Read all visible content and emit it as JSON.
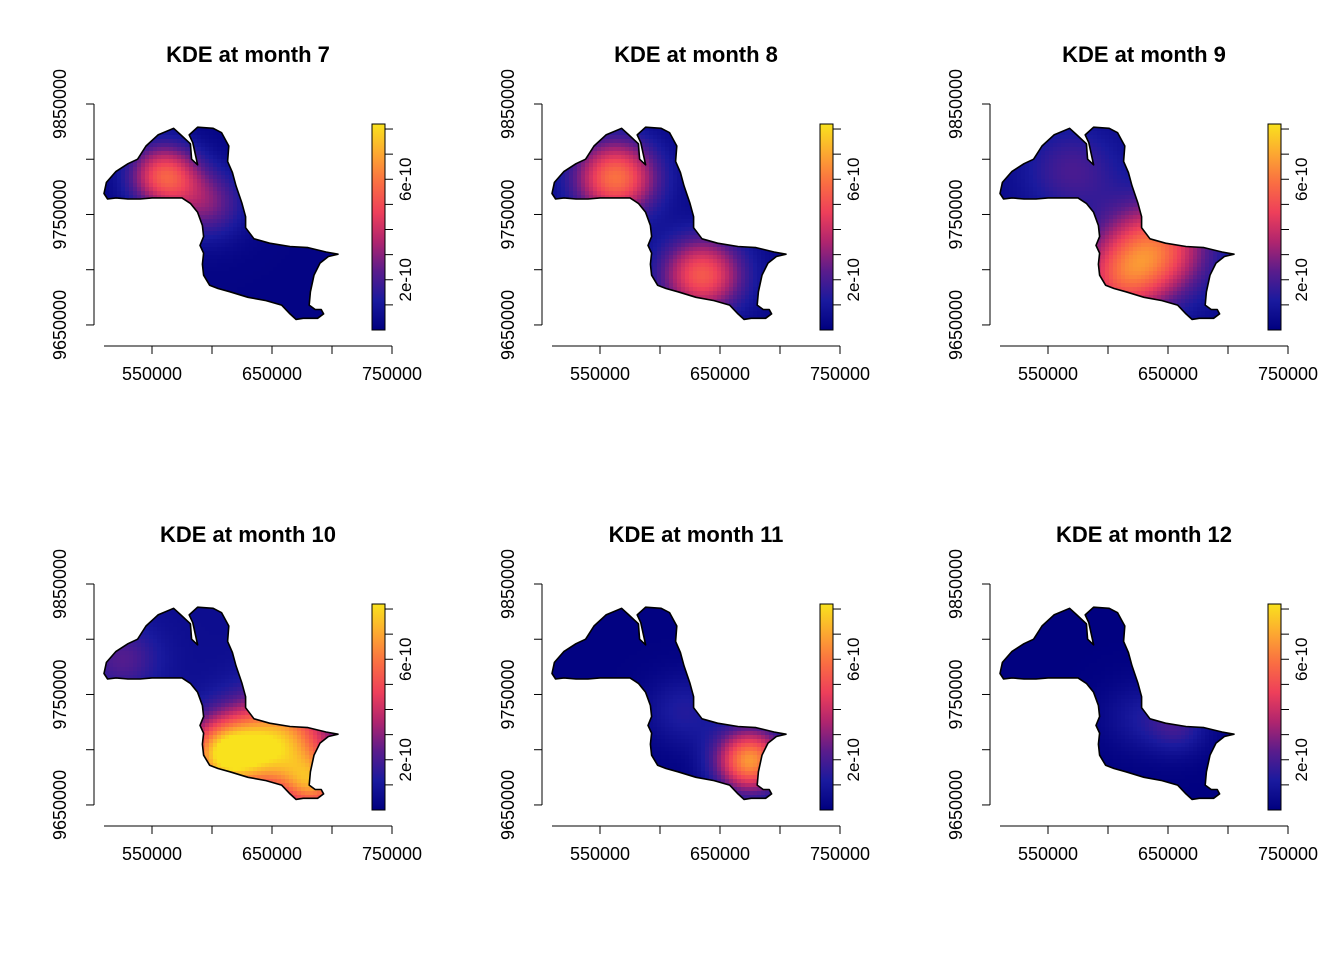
{
  "figure": {
    "background": "#ffffff",
    "colormap": [
      "#00007F",
      "#1A1A9E",
      "#5A1C8C",
      "#B0256E",
      "#EE3F5A",
      "#FA6E42",
      "#FCA831",
      "#F9E21D"
    ],
    "boundary_color": "#000000"
  },
  "chart_data": [
    {
      "type": "heatmap",
      "title": "KDE at month 7",
      "xlabel": "",
      "ylabel": "",
      "x_ticks": [
        "550000",
        "650000",
        "750000"
      ],
      "y_ticks": [
        "9650000",
        "9750000",
        "9850000"
      ],
      "xlim": [
        510000,
        750000
      ],
      "ylim": [
        9640000,
        9850000
      ],
      "colorbar": {
        "ticks": [
          "2e-10",
          "6e-10"
        ],
        "range": [
          0,
          8.2e-10
        ]
      },
      "hotspots": [
        {
          "x": 560000,
          "y": 9785000,
          "density": 5e-10,
          "spread": 20000
        },
        {
          "x": 595000,
          "y": 9760000,
          "density": 2.5e-10,
          "spread": 22000
        }
      ],
      "base_density": 2e-11
    },
    {
      "type": "heatmap",
      "title": "KDE at month 8",
      "xlabel": "",
      "ylabel": "",
      "x_ticks": [
        "550000",
        "650000",
        "750000"
      ],
      "y_ticks": [
        "9650000",
        "9750000",
        "9850000"
      ],
      "xlim": [
        510000,
        750000
      ],
      "ylim": [
        9640000,
        9850000
      ],
      "colorbar": {
        "ticks": [
          "2e-10",
          "6e-10"
        ],
        "range": [
          0,
          8.2e-10
        ]
      },
      "hotspots": [
        {
          "x": 563000,
          "y": 9783000,
          "density": 5.6e-10,
          "spread": 24000
        },
        {
          "x": 635000,
          "y": 9695000,
          "density": 5e-10,
          "spread": 24000
        }
      ],
      "base_density": 3e-11
    },
    {
      "type": "heatmap",
      "title": "KDE at month 9",
      "xlabel": "",
      "ylabel": "",
      "x_ticks": [
        "550000",
        "650000",
        "750000"
      ],
      "y_ticks": [
        "9650000",
        "9750000",
        "9850000"
      ],
      "xlim": [
        510000,
        750000
      ],
      "ylim": [
        9640000,
        9850000
      ],
      "colorbar": {
        "ticks": [
          "2e-10",
          "6e-10"
        ],
        "range": [
          0,
          8.2e-10
        ]
      },
      "hotspots": [
        {
          "x": 640000,
          "y": 9720000,
          "density": 4.9e-10,
          "spread": 30000
        },
        {
          "x": 610000,
          "y": 9690000,
          "density": 3.5e-10,
          "spread": 26000
        },
        {
          "x": 570000,
          "y": 9790000,
          "density": 1.6e-10,
          "spread": 28000
        }
      ],
      "base_density": 4e-11
    },
    {
      "type": "heatmap",
      "title": "KDE at month 10",
      "xlabel": "",
      "ylabel": "",
      "x_ticks": [
        "550000",
        "650000",
        "750000"
      ],
      "y_ticks": [
        "9650000",
        "9750000",
        "9850000"
      ],
      "xlim": [
        510000,
        750000
      ],
      "ylim": [
        9640000,
        9850000
      ],
      "colorbar": {
        "ticks": [
          "2e-10",
          "6e-10"
        ],
        "range": [
          0,
          8.2e-10
        ]
      },
      "hotspots": [
        {
          "x": 655000,
          "y": 9705000,
          "density": 6.8e-10,
          "spread": 30000
        },
        {
          "x": 610000,
          "y": 9695000,
          "density": 6.5e-10,
          "spread": 22000
        },
        {
          "x": 685000,
          "y": 9668000,
          "density": 4.5e-10,
          "spread": 18000
        },
        {
          "x": 525000,
          "y": 9782000,
          "density": 1.6e-10,
          "spread": 22000
        }
      ],
      "base_density": 6e-11
    },
    {
      "type": "heatmap",
      "title": "KDE at month 11",
      "xlabel": "",
      "ylabel": "",
      "x_ticks": [
        "550000",
        "650000",
        "750000"
      ],
      "y_ticks": [
        "9650000",
        "9750000",
        "9850000"
      ],
      "xlim": [
        510000,
        750000
      ],
      "ylim": [
        9640000,
        9850000
      ],
      "colorbar": {
        "ticks": [
          "2e-10",
          "6e-10"
        ],
        "range": [
          0,
          8.2e-10
        ]
      },
      "hotspots": [
        {
          "x": 675000,
          "y": 9690000,
          "density": 6.6e-10,
          "spread": 20000
        },
        {
          "x": 620000,
          "y": 9735000,
          "density": 1.2e-10,
          "spread": 22000
        }
      ],
      "base_density": 1e-11
    },
    {
      "type": "heatmap",
      "title": "KDE at month 12",
      "xlabel": "",
      "ylabel": "",
      "x_ticks": [
        "550000",
        "650000",
        "750000"
      ],
      "y_ticks": [
        "9650000",
        "9750000",
        "9850000"
      ],
      "xlim": [
        510000,
        750000
      ],
      "ylim": [
        9640000,
        9850000
      ],
      "colorbar": {
        "ticks": [
          "2e-10",
          "6e-10"
        ],
        "range": [
          0,
          8.2e-10
        ]
      },
      "hotspots": [
        {
          "x": 658000,
          "y": 9722000,
          "density": 1.6e-10,
          "spread": 18000
        },
        {
          "x": 625000,
          "y": 9730000,
          "density": 9e-11,
          "spread": 22000
        }
      ],
      "base_density": 5e-12
    }
  ]
}
